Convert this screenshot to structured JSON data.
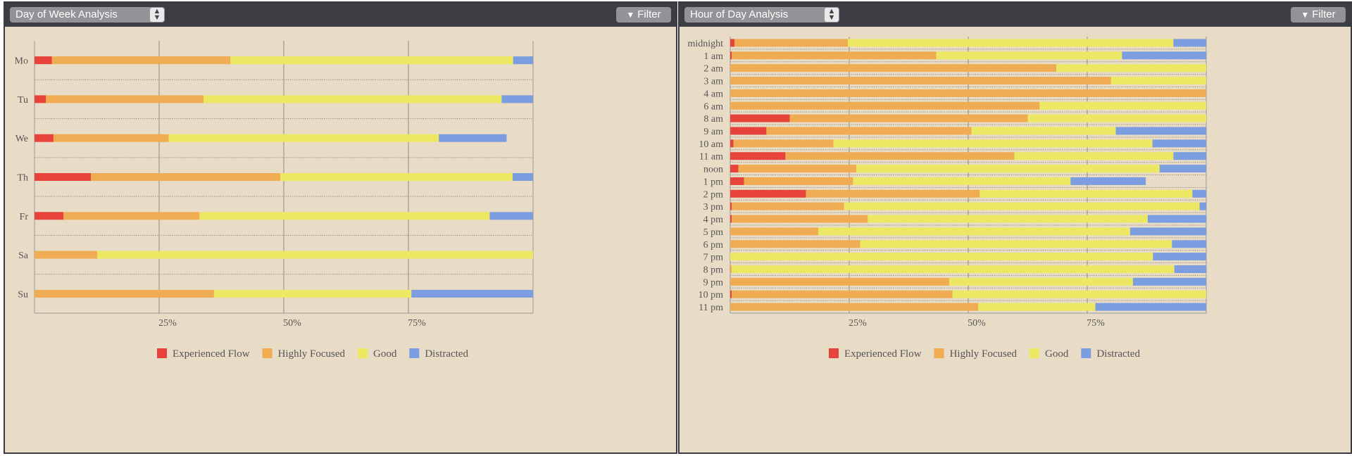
{
  "colors": {
    "experienced_flow": "#e8433a",
    "highly_focused": "#f0ac53",
    "good": "#ede863",
    "distracted": "#7c9de0"
  },
  "left_panel": {
    "select_value": "Day of Week Analysis",
    "filter_label": "Filter"
  },
  "right_panel": {
    "select_value": "Hour of Day Analysis",
    "filter_label": "Filter"
  },
  "chart_data": [
    {
      "type": "bar",
      "orientation": "horizontal",
      "stacked": true,
      "categories": [
        "Mo",
        "Tu",
        "We",
        "Th",
        "Fr",
        "Sa",
        "Su"
      ],
      "series": [
        {
          "name": "Experienced Flow",
          "values": [
            3.5,
            2.3,
            3.8,
            11.3,
            5.8,
            0,
            0
          ]
        },
        {
          "name": "Highly Focused",
          "values": [
            35.8,
            31.6,
            23.1,
            38.0,
            27.3,
            12.6,
            36.0
          ]
        },
        {
          "name": "Good",
          "values": [
            56.7,
            59.8,
            54.2,
            46.6,
            58.2,
            87.4,
            39.6
          ]
        },
        {
          "name": "Distracted",
          "values": [
            4.0,
            6.3,
            13.6,
            4.1,
            8.7,
            0,
            24.4
          ]
        }
      ],
      "xticks": [
        "25%",
        "50%",
        "75%"
      ],
      "xlim": [
        0,
        100
      ],
      "legend": [
        "Experienced Flow",
        "Highly Focused",
        "Good",
        "Distracted"
      ],
      "legend_position": "bottom",
      "grid": true
    },
    {
      "type": "bar",
      "orientation": "horizontal",
      "stacked": true,
      "categories": [
        "midnight",
        "1 am",
        "2 am",
        "3 am",
        "4 am",
        "6 am",
        "8 am",
        "9 am",
        "10 am",
        "11 am",
        "noon",
        "1 pm",
        "2 pm",
        "3 pm",
        "4 pm",
        "5 pm",
        "6 pm",
        "7 pm",
        "8 pm",
        "9 pm",
        "10 pm",
        "11 pm"
      ],
      "series": [
        {
          "name": "Experienced Flow",
          "values": [
            0.9,
            0.3,
            0,
            0,
            0,
            0,
            12.5,
            7.6,
            0.7,
            11.6,
            1.7,
            2.9,
            15.9,
            0.3,
            0.3,
            0,
            0,
            0,
            0,
            0,
            0.3,
            0
          ]
        },
        {
          "name": "Highly Focused",
          "values": [
            23.8,
            43.0,
            68.5,
            80.0,
            100,
            65.0,
            50.0,
            43.1,
            21.0,
            48.1,
            24.8,
            22.9,
            36.5,
            23.6,
            28.6,
            18.5,
            27.3,
            0,
            0.3,
            46.0,
            46.4,
            52.1
          ]
        },
        {
          "name": "Good",
          "values": [
            68.4,
            39.0,
            31.5,
            20.0,
            0,
            35.0,
            37.5,
            30.3,
            67.0,
            33.4,
            63.7,
            45.7,
            44.7,
            74.7,
            58.8,
            65.5,
            65.5,
            88.8,
            93.0,
            38.6,
            53.3,
            24.6
          ]
        },
        {
          "name": "Distracted",
          "values": [
            6.9,
            17.7,
            0,
            0,
            0,
            0,
            0,
            19.0,
            11.3,
            6.9,
            9.8,
            15.8,
            2.9,
            1.4,
            12.3,
            16.0,
            7.2,
            11.2,
            6.7,
            15.4,
            0,
            23.3
          ]
        }
      ],
      "xticks": [
        "25%",
        "50%",
        "75%"
      ],
      "xlim": [
        0,
        100
      ],
      "legend": [
        "Experienced Flow",
        "Highly Focused",
        "Good",
        "Distracted"
      ],
      "legend_position": "bottom",
      "grid": true
    }
  ]
}
